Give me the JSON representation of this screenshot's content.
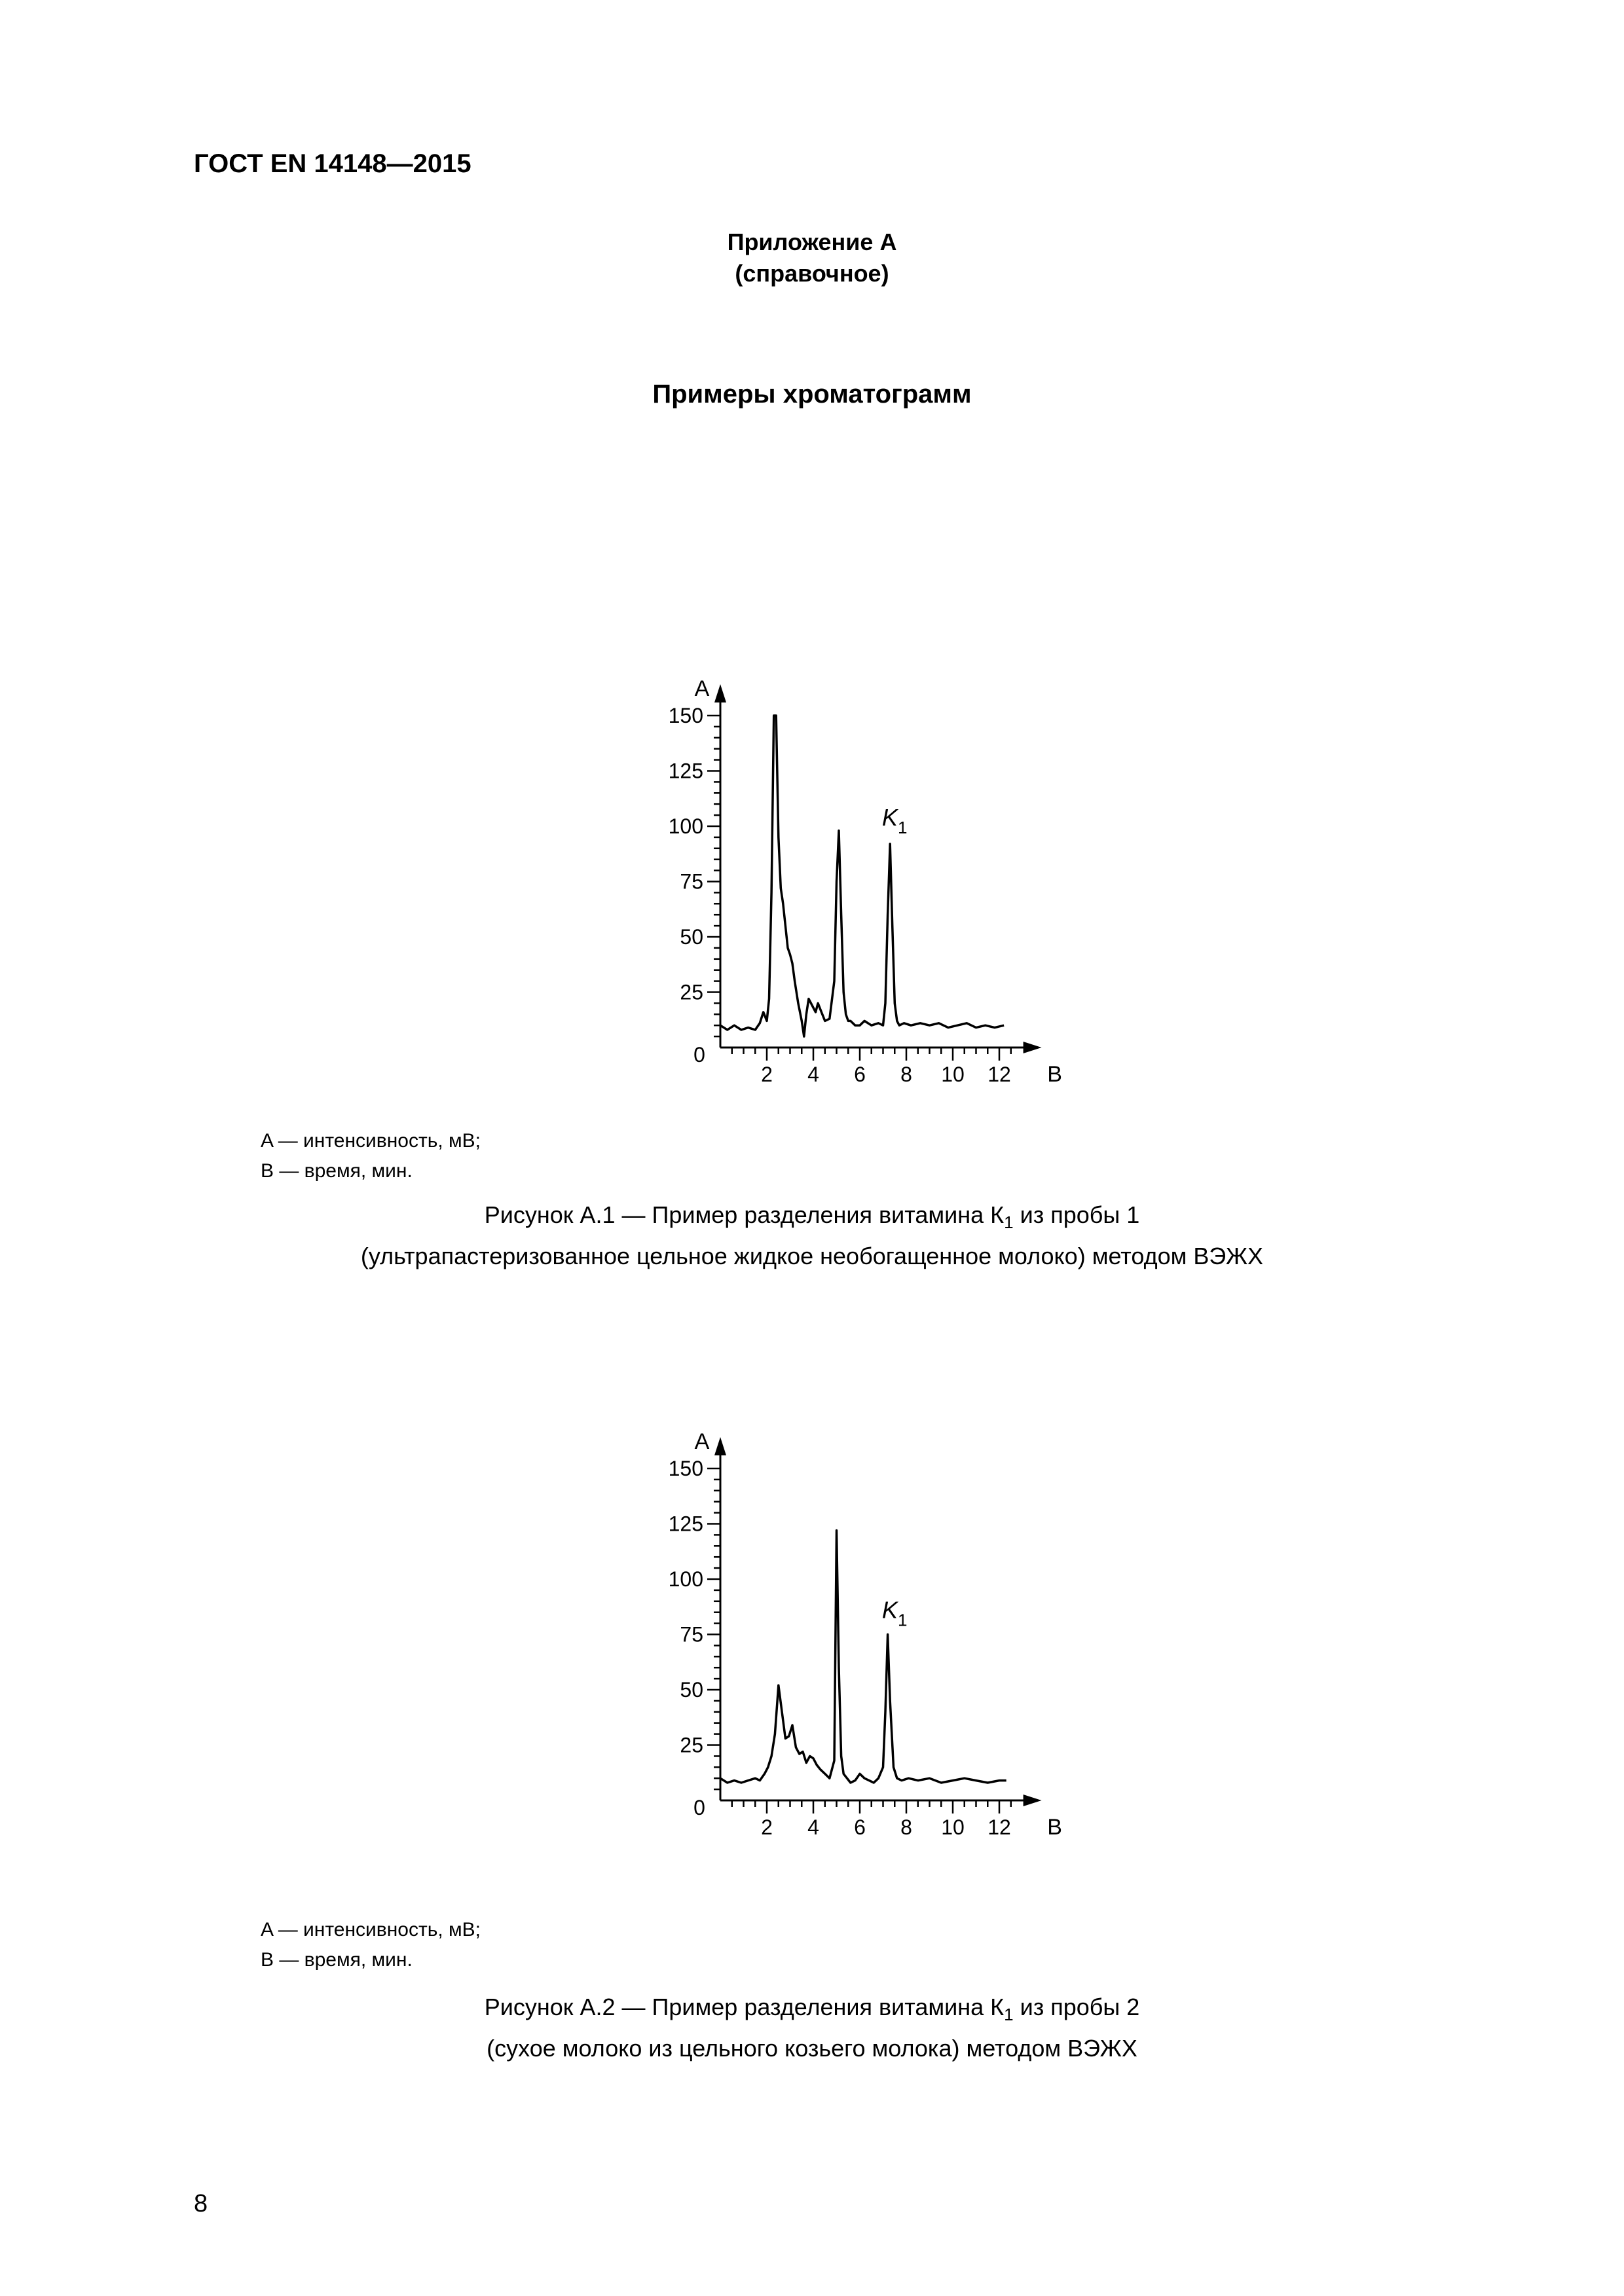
{
  "header": {
    "doc_id": "ГОСТ EN 14148—2015"
  },
  "annex": {
    "title": "Приложение А",
    "note": "(справочное)"
  },
  "section_title": "Примеры хроматограмм",
  "figures": [
    {
      "legend": [
        "A — интенсивность, мВ;",
        "B — время, мин."
      ],
      "caption": {
        "line1_before": "Рисунок А.1 — Пример разделения витамина К",
        "line1_sub": "1",
        "line1_after": " из пробы 1",
        "line2": "(ультрапастеризованное цельное жидкое необогащенное молоко) методом ВЭЖХ"
      },
      "peak_label": {
        "main": "K",
        "sub": "1"
      }
    },
    {
      "legend": [
        "A — интенсивность, мВ;",
        "B — время, мин."
      ],
      "caption": {
        "line1_before": "Рисунок А.2 — Пример разделения витамина К",
        "line1_sub": "1",
        "line1_after": " из пробы 2",
        "line2": "(сухое молоко из цельного козьего молока) методом ВЭЖХ"
      },
      "peak_label": {
        "main": "K",
        "sub": "1"
      }
    }
  ],
  "page_number": "8",
  "chart_data": [
    {
      "type": "line",
      "ylabel": "A",
      "xlabel": "B",
      "xlim": [
        0,
        13
      ],
      "ylim": [
        0,
        150
      ],
      "x_ticks": [
        2,
        4,
        6,
        8,
        10,
        12
      ],
      "y_ticks": [
        25,
        50,
        75,
        100,
        125,
        150
      ],
      "origin_label": "0",
      "series": [
        {
          "x": [
            0,
            0.3,
            0.6,
            0.9,
            1.2,
            1.5,
            1.7,
            1.85,
            2.0,
            2.1,
            2.2,
            2.3,
            2.4,
            2.5,
            2.6,
            2.7,
            2.8,
            2.9,
            3.0,
            3.1,
            3.2,
            3.35,
            3.5,
            3.6,
            3.7,
            3.8,
            3.9,
            4.0,
            4.1,
            4.2,
            4.35,
            4.5,
            4.7,
            4.9,
            5.0,
            5.1,
            5.2,
            5.3,
            5.4,
            5.5,
            5.6,
            5.8,
            6.0,
            6.2,
            6.5,
            6.8,
            7.0,
            7.1,
            7.2,
            7.3,
            7.4,
            7.5,
            7.6,
            7.7,
            7.9,
            8.2,
            8.6,
            9.0,
            9.4,
            9.8,
            10.2,
            10.6,
            11.0,
            11.4,
            11.8,
            12.2
          ],
          "y": [
            10,
            8,
            10,
            8,
            9,
            8,
            11,
            16,
            12,
            22,
            70,
            150,
            150,
            95,
            72,
            65,
            55,
            45,
            42,
            38,
            30,
            20,
            12,
            5,
            15,
            22,
            20,
            18,
            16,
            20,
            16,
            12,
            13,
            30,
            75,
            98,
            60,
            25,
            15,
            12,
            12,
            10,
            10,
            12,
            10,
            11,
            10,
            20,
            60,
            92,
            55,
            20,
            12,
            10,
            11,
            10,
            11,
            10,
            11,
            9,
            10,
            11,
            9,
            10,
            9,
            10
          ]
        }
      ],
      "annotations": [
        {
          "text": "K1",
          "x": 7.35,
          "y": 98
        }
      ]
    },
    {
      "type": "line",
      "ylabel": "A",
      "xlabel": "B",
      "xlim": [
        0,
        13
      ],
      "ylim": [
        0,
        150
      ],
      "x_ticks": [
        2,
        4,
        6,
        8,
        10,
        12
      ],
      "y_ticks": [
        25,
        50,
        75,
        100,
        125,
        150
      ],
      "origin_label": "0",
      "series": [
        {
          "x": [
            0,
            0.3,
            0.6,
            0.9,
            1.2,
            1.5,
            1.7,
            1.9,
            2.05,
            2.2,
            2.35,
            2.5,
            2.65,
            2.8,
            2.95,
            3.1,
            3.25,
            3.4,
            3.55,
            3.7,
            3.85,
            4.0,
            4.15,
            4.3,
            4.5,
            4.7,
            4.9,
            5.0,
            5.1,
            5.2,
            5.3,
            5.45,
            5.6,
            5.8,
            6.0,
            6.2,
            6.4,
            6.6,
            6.8,
            7.0,
            7.1,
            7.2,
            7.3,
            7.45,
            7.6,
            7.8,
            8.1,
            8.5,
            9.0,
            9.5,
            10.0,
            10.5,
            11.0,
            11.5,
            12.0,
            12.3
          ],
          "y": [
            10,
            8,
            9,
            8,
            9,
            10,
            9,
            12,
            15,
            20,
            30,
            52,
            40,
            28,
            29,
            34,
            24,
            21,
            22,
            17,
            20,
            19,
            16,
            14,
            12,
            10,
            18,
            122,
            60,
            20,
            12,
            10,
            8,
            9,
            12,
            10,
            9,
            8,
            10,
            15,
            40,
            75,
            45,
            15,
            10,
            9,
            10,
            9,
            10,
            8,
            9,
            10,
            9,
            8,
            9,
            9
          ]
        }
      ],
      "annotations": [
        {
          "text": "K1",
          "x": 7.35,
          "y": 80
        }
      ]
    }
  ]
}
